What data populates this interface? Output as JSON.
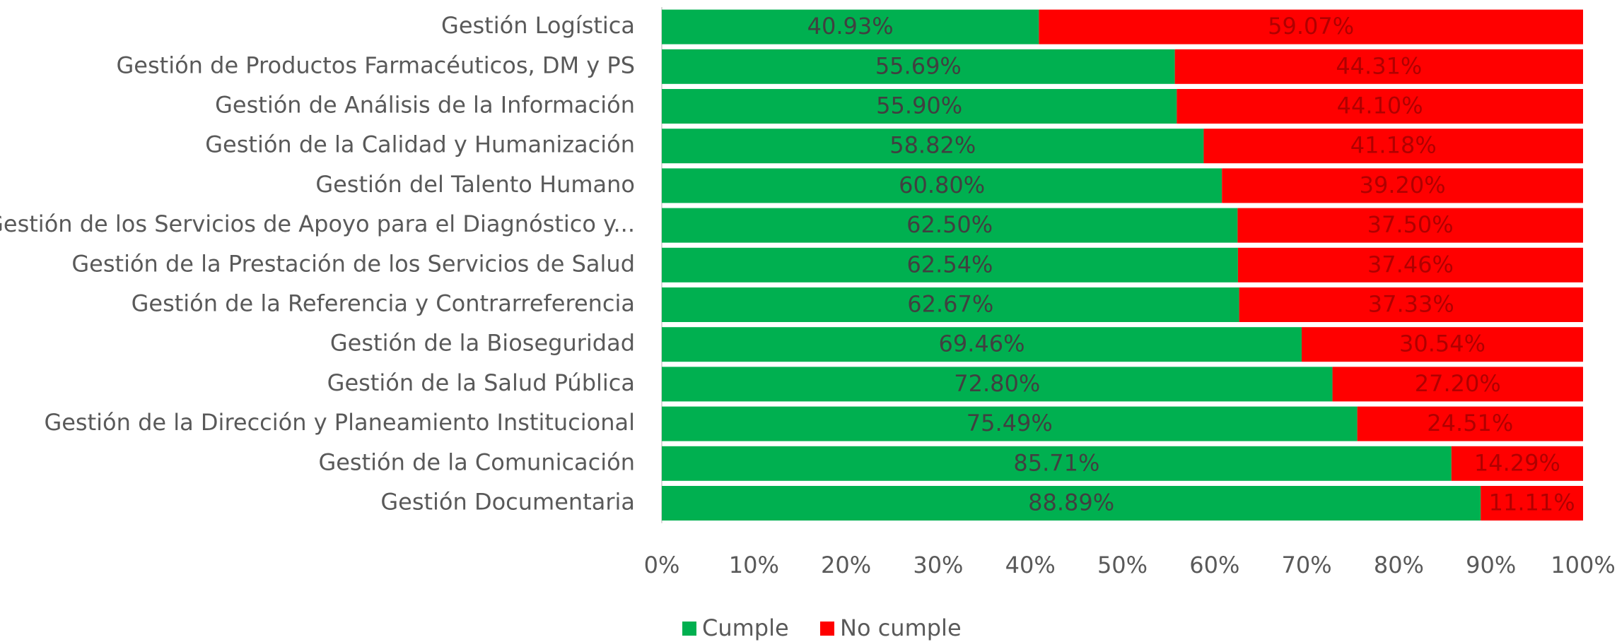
{
  "chart_data": {
    "type": "stacked_barh",
    "categories": [
      "Gestión Logística",
      "Gestión de Productos Farmacéuticos, DM y PS",
      "Gestión de Análisis de la Información",
      "Gestión de la Calidad y Humanización",
      "Gestión del Talento Humano",
      "Gestión de los Servicios de Apoyo para el Diagnóstico y...",
      "Gestión de la Prestación de los Servicios de Salud",
      "Gestión de la Referencia y Contrarreferencia",
      "Gestión de la Bioseguridad",
      "Gestión de la Salud Pública",
      "Gestión de la Dirección y Planeamiento Institucional",
      "Gestión de la Comunicación",
      "Gestión Documentaria"
    ],
    "series": [
      {
        "name": "Cumple",
        "color": "#00b050",
        "values": [
          40.93,
          55.69,
          55.9,
          58.82,
          60.8,
          62.5,
          62.54,
          62.67,
          69.46,
          72.8,
          75.49,
          85.71,
          88.89
        ],
        "value_labels": [
          "40.93%",
          "55.69%",
          "55.90%",
          "58.82%",
          "60.80%",
          "62.50%",
          "62.54%",
          "62.67%",
          "69.46%",
          "72.80%",
          "75.49%",
          "85.71%",
          "88.89%"
        ]
      },
      {
        "name": "No cumple",
        "color": "#ff0000",
        "values": [
          59.07,
          44.31,
          44.1,
          41.18,
          39.2,
          37.5,
          37.46,
          37.33,
          30.54,
          27.2,
          24.51,
          14.29,
          11.11
        ],
        "value_labels": [
          "59.07%",
          "44.31%",
          "44.10%",
          "41.18%",
          "39.20%",
          "37.50%",
          "37.46%",
          "37.33%",
          "30.54%",
          "27.20%",
          "24.51%",
          "14.29%",
          "11.11%"
        ]
      }
    ],
    "xlim": [
      0,
      100
    ],
    "xticks": [
      {
        "value": 0,
        "label": "0%"
      },
      {
        "value": 10,
        "label": "10%"
      },
      {
        "value": 20,
        "label": "20%"
      },
      {
        "value": 30,
        "label": "30%"
      },
      {
        "value": 40,
        "label": "40%"
      },
      {
        "value": 50,
        "label": "50%"
      },
      {
        "value": 60,
        "label": "60%"
      },
      {
        "value": 70,
        "label": "70%"
      },
      {
        "value": 80,
        "label": "80%"
      },
      {
        "value": 90,
        "label": "90%"
      },
      {
        "value": 100,
        "label": "100%"
      }
    ],
    "legend": "bottom",
    "grid": false
  }
}
